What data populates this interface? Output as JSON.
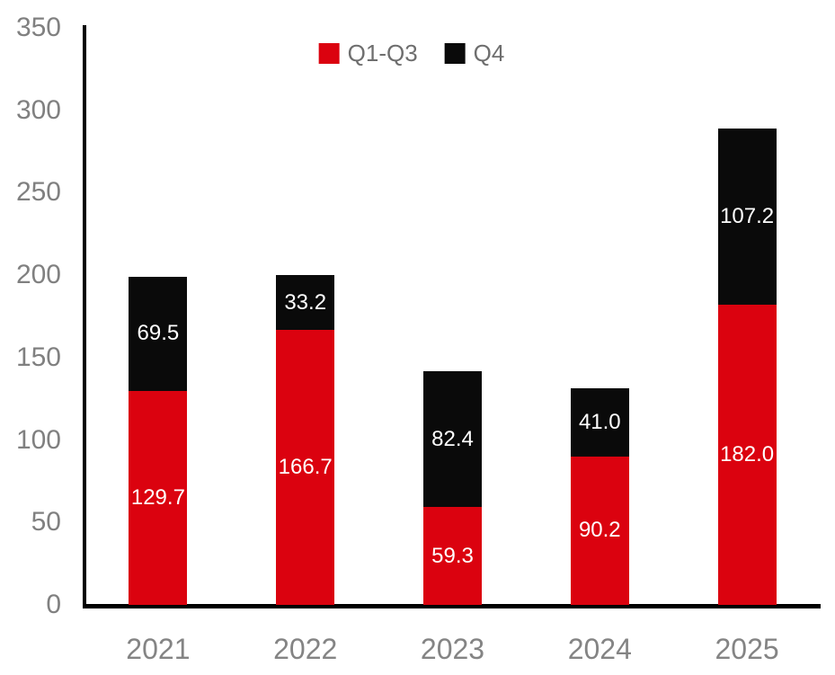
{
  "chart_data": {
    "type": "bar",
    "stacked": true,
    "title": "",
    "xlabel": "",
    "ylabel": "",
    "categories": [
      "2021",
      "2022",
      "2023",
      "2024",
      "2025"
    ],
    "series": [
      {
        "name": "Q1-Q3",
        "color": "#DB020F",
        "values": [
          129.7,
          166.7,
          59.3,
          90.2,
          182.0
        ]
      },
      {
        "name": "Q4",
        "color": "#0A0A0A",
        "values": [
          69.5,
          33.2,
          82.4,
          41.0,
          107.2
        ]
      }
    ],
    "totals": [
      199.2,
      199.9,
      141.7,
      131.2,
      289.2
    ],
    "ylim": [
      0,
      350
    ],
    "yticks": [
      0,
      50,
      100,
      150,
      200,
      250,
      300,
      350
    ],
    "grid": false,
    "legend_position": "top-center",
    "data_labels": true,
    "data_label_decimals": 1,
    "data_label_color": "#FFFFFF",
    "axis_line_color": "#000000",
    "tick_label_color": "#808080",
    "legend_text_color": "#6E6E6E"
  }
}
